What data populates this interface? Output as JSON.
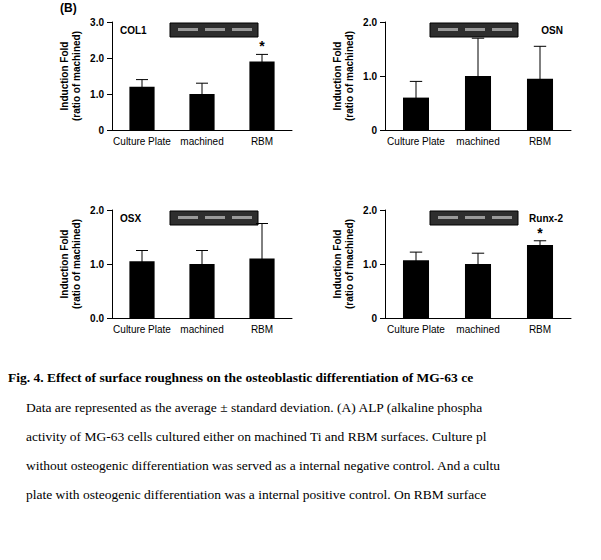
{
  "panel_label": "(B)",
  "chart_data": [
    {
      "type": "bar",
      "title": "COL1",
      "categories": [
        "Culture Plate",
        "machined",
        "RBM"
      ],
      "values": [
        1.2,
        1.0,
        1.9
      ],
      "errors": [
        0.2,
        0.3,
        0.2
      ],
      "significance": [
        null,
        null,
        "*"
      ],
      "ylabel": "Induction Fold\n(ratio of machined)",
      "ylim": [
        0,
        3
      ],
      "yticks": [
        0,
        {
          "value": 1,
          "label": "1.0"
        },
        {
          "value": 2,
          "label": "2.0"
        },
        {
          "value": 3,
          "label": "3.0"
        }
      ],
      "color": "#000000",
      "grid": false
    },
    {
      "type": "bar",
      "title": "OSN",
      "categories": [
        "Culture Plate",
        "machined",
        "RBM"
      ],
      "values": [
        0.6,
        1.0,
        0.95
      ],
      "errors": [
        0.3,
        0.7,
        0.6
      ],
      "significance": [
        null,
        null,
        null
      ],
      "ylabel": "Induction Fold\n(ratio of machined)",
      "ylim": [
        0,
        2
      ],
      "yticks": [
        0,
        {
          "value": 1,
          "label": "1.0"
        },
        {
          "value": 2,
          "label": "2.0"
        }
      ],
      "color": "#000000",
      "grid": false
    },
    {
      "type": "bar",
      "title": "OSX",
      "categories": [
        "Culture Plate",
        "machined",
        "RBM"
      ],
      "values": [
        1.05,
        1.0,
        1.1
      ],
      "errors": [
        0.2,
        0.25,
        0.65
      ],
      "significance": [
        null,
        null,
        null
      ],
      "ylabel": "Induction Fold\n(ratio of machined)",
      "ylim": [
        0,
        2
      ],
      "yticks": [
        {
          "value": 0,
          "label": "0.0"
        },
        {
          "value": 1,
          "label": "1.0"
        },
        {
          "value": 2,
          "label": "2.0"
        }
      ],
      "color": "#000000",
      "grid": false
    },
    {
      "type": "bar",
      "title": "Runx-2",
      "categories": [
        "Culture Plate",
        "machined",
        "RBM"
      ],
      "values": [
        1.07,
        1.0,
        1.35
      ],
      "errors": [
        0.15,
        0.2,
        0.08
      ],
      "significance": [
        null,
        null,
        "*"
      ],
      "ylabel": "Induction Fold\n(ratio of machined)",
      "ylim": [
        0,
        2
      ],
      "yticks": [
        0,
        {
          "value": 1,
          "label": "1.0"
        },
        {
          "value": 2,
          "label": "2.0"
        }
      ],
      "color": "#000000",
      "grid": false
    }
  ],
  "caption": {
    "title": "Fig. 4. Effect of surface roughness on the osteoblastic differentiation of MG-63 ce",
    "lines": [
      "Data are represented as the average ± standard deviation. (A) ALP (alkaline phospha",
      "activity of MG-63 cells cultured either on machined Ti and RBM surfaces. Culture pl",
      "without osteogenic differentiation was served as a internal negative control. And a cultu",
      "plate with osteogenic differentiation was a internal positive control. On RBM surface"
    ]
  }
}
